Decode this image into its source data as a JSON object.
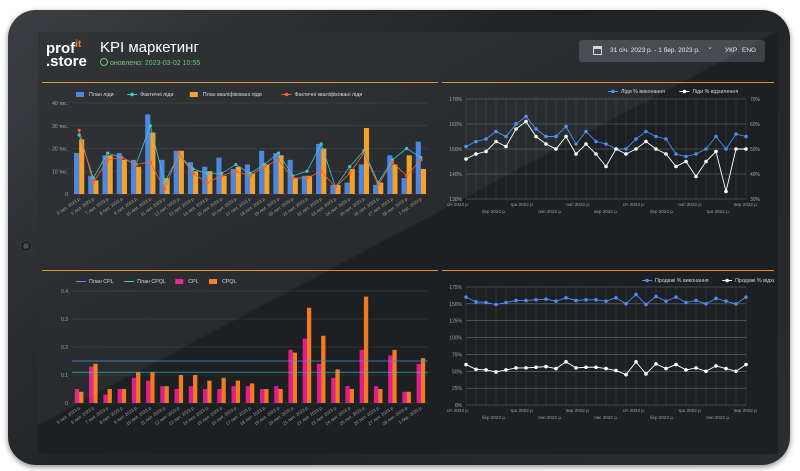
{
  "header": {
    "logo_top": "prof",
    "logo_accent": "it",
    "logo_bottom": ".store",
    "title": "KPI маркетинг",
    "updated": "оновлено: 2023-03-02 10:55",
    "date_range": "31 січ. 2023 р. - 1 бер. 2023 р.",
    "lang_ukr": "УКР",
    "lang_eng": "ENG",
    "dropdown_icon": "chevron-down"
  },
  "colors": {
    "blue": "#3f7fe0",
    "cyan": "#2ec4cc",
    "orange": "#f39b1e",
    "red_orange": "#ee5a2a",
    "magenta": "#e21d8e",
    "cpql_orange": "#f47a1f",
    "white": "#ffffff",
    "accent_line": "#e0892d"
  },
  "chart_data": [
    {
      "type": "bar",
      "legend": [
        "План ліди",
        "Фактичні ліди",
        "План кваліфіковані ліди",
        "Фактичні кваліфіковані ліди"
      ],
      "y_ticks": [
        "0",
        "10 тис.",
        "20 тис.",
        "30 тис.",
        "40 тис."
      ],
      "ylim": [
        0,
        40000
      ],
      "categories": [
        "5 лют. 2023 р.",
        "6 лют. 2023 р.",
        "7 лют. 2023 р.",
        "8 лют. 2023 р.",
        "9 лют. 2023 р.",
        "10 лют. 2023 р.",
        "11 лют. 2023 р.",
        "12 лют. 2023 р.",
        "13 лют. 2023 р.",
        "14 лют. 2023 р.",
        "15 лют. 2023 р.",
        "16 лют. 2023 р.",
        "17 лют. 2023 р.",
        "18 лют. 2023 р.",
        "19 лют. 2023 р.",
        "20 лют. 2023 р.",
        "21 лют. 2023 р.",
        "22 лют. 2023 р.",
        "23 лют. 2023 р.",
        "24 лют. 2023 р.",
        "25 лют. 2023 р.",
        "26 лют. 2023 р.",
        "27 лют. 2023 р.",
        "28 лют. 2023 р.",
        "1 бер. 2023 р."
      ],
      "series": [
        {
          "name": "План ліди",
          "values": [
            18000,
            8000,
            17000,
            18000,
            15000,
            35000,
            15000,
            19000,
            14000,
            12000,
            16000,
            11000,
            13000,
            19000,
            18000,
            15000,
            8000,
            22000,
            4000,
            5000,
            13000,
            4000,
            17000,
            7000,
            23000
          ]
        },
        {
          "name": "Фактичні ліди",
          "values": [
            26000,
            7000,
            18000,
            16000,
            13000,
            30000,
            5000,
            17000,
            11000,
            9000,
            9000,
            13000,
            9000,
            13000,
            18000,
            8000,
            10000,
            22000,
            3000,
            12000,
            19000,
            5000,
            15000,
            20000,
            16000
          ]
        },
        {
          "name": "План кваліфіковані ліди",
          "values": [
            24000,
            6000,
            17000,
            15000,
            12000,
            27000,
            7000,
            19000,
            10000,
            10000,
            8000,
            12000,
            9000,
            13000,
            17000,
            7000,
            8000,
            20000,
            4000,
            11000,
            29000,
            5000,
            13000,
            17000,
            11000
          ]
        },
        {
          "name": "Фактичні кваліфіковані ліди",
          "values": [
            28000,
            5000,
            15000,
            16000,
            13000,
            14000,
            2000,
            18000,
            9000,
            5000,
            8000,
            10000,
            8000,
            12000,
            15000,
            7000,
            7000,
            10000,
            3000,
            9000,
            18000,
            4000,
            14000,
            8000,
            15000
          ]
        }
      ]
    },
    {
      "type": "line",
      "legend": [
        "Ліди % виконання",
        "Ліди % відхилення"
      ],
      "y_left_ticks": [
        "130%",
        "140%",
        "150%",
        "160%",
        "170%"
      ],
      "y_right_ticks": [
        "30%",
        "40%",
        "50%",
        "60%",
        "70%"
      ],
      "ylim_left": [
        130,
        170
      ],
      "ylim_right": [
        30,
        70
      ],
      "x_ticks_top": [
        "січ 2022 р.",
        "тра 2022 р.",
        "лип 2022 р.",
        "січ 2022 р.",
        "лип 2022 р.",
        "вер 2022 р."
      ],
      "x_ticks_bottom": [
        "бер 2022 р.",
        "лип 2022 р.",
        "вер 2022 р.",
        "бер 2022 р.",
        "тра 2022 р.",
        "лис 2022 р."
      ],
      "series": [
        {
          "name": "Ліди % виконання",
          "values": [
            151,
            153,
            154,
            157,
            155,
            160,
            163,
            158,
            155,
            155,
            159,
            152,
            157,
            153,
            152,
            150,
            150,
            154,
            157,
            155,
            154,
            148,
            147,
            148,
            150,
            155,
            150,
            156,
            155
          ]
        },
        {
          "name": "Ліди % відхилення",
          "values": [
            146,
            148,
            149,
            153,
            151,
            158,
            161,
            155,
            152,
            150,
            155,
            148,
            152,
            148,
            143,
            150,
            148,
            150,
            153,
            150,
            148,
            143,
            145,
            139,
            145,
            149,
            133,
            150,
            150
          ]
        }
      ]
    },
    {
      "type": "bar",
      "legend": [
        "План CPL",
        "План CPQL",
        "CPL",
        "CPQL"
      ],
      "y_ticks": [
        "0",
        "0.1",
        "0.2",
        "0.3",
        "0.4"
      ],
      "ylim": [
        0,
        0.4
      ],
      "categories": [
        "5 лют. 2023 р.",
        "6 лют. 2023 р.",
        "7 лют. 2023 р.",
        "8 лют. 2023 р.",
        "9 лют. 2023 р.",
        "10 лют. 2023 р.",
        "11 лют. 2023 р.",
        "12 лют. 2023 р.",
        "13 лют. 2023 р.",
        "14 лют. 2023 р.",
        "15 лют. 2023 р.",
        "16 лют. 2023 р.",
        "17 лют. 2023 р.",
        "18 лют. 2023 р.",
        "19 лют. 2023 р.",
        "20 лют. 2023 р.",
        "21 лют. 2023 р.",
        "22 лют. 2023 р.",
        "23 лют. 2023 р.",
        "24 лют. 2023 р.",
        "25 лют. 2023 р.",
        "26 лют. 2023 р.",
        "27 лют. 2023 р.",
        "28 лют. 2023 р.",
        "1 бер. 2023 р."
      ],
      "plan_lines": [
        {
          "name": "План CPL",
          "value": 0.15
        },
        {
          "name": "План CPQL",
          "value": 0.11
        }
      ],
      "series": [
        {
          "name": "CPL",
          "values": [
            0.05,
            0.13,
            0.03,
            0.05,
            0.09,
            0.08,
            0.06,
            0.05,
            0.06,
            0.05,
            0.05,
            0.06,
            0.06,
            0.05,
            0.06,
            0.19,
            0.23,
            0.14,
            0.09,
            0.06,
            0.19,
            0.06,
            0.17,
            0.04,
            0.14
          ]
        },
        {
          "name": "CPQL",
          "values": [
            0.04,
            0.14,
            0.05,
            0.05,
            0.11,
            0.11,
            0.06,
            0.1,
            0.1,
            0.08,
            0.09,
            0.08,
            0.07,
            0.05,
            0.05,
            0.18,
            0.34,
            0.24,
            0.12,
            0.05,
            0.38,
            0.05,
            0.19,
            0.04,
            0.16
          ]
        }
      ]
    },
    {
      "type": "line",
      "legend": [
        "Продажі % виконання",
        "Продажі % відхилення"
      ],
      "y_ticks": [
        "0%",
        "25%",
        "50%",
        "75%",
        "100%",
        "125%",
        "150%",
        "175%"
      ],
      "ylim": [
        0,
        175
      ],
      "x_ticks_top": [
        "січ 2022 р.",
        "тра 2022 р.",
        "вер 2022 р.",
        "січ 2022 р.",
        "тра 2022 р.",
        "вер 2022 р."
      ],
      "x_ticks_bottom": [
        "бер 2022 р.",
        "лип 2022 р.",
        "лис 2022 р.",
        "бер 2022 р.",
        "лип 2022 р.",
        "лис 2022 р."
      ],
      "series": [
        {
          "name": "Продажі % виконання",
          "values": [
            160,
            153,
            152,
            149,
            152,
            155,
            155,
            156,
            157,
            154,
            159,
            155,
            156,
            156,
            154,
            159,
            150,
            164,
            149,
            161,
            154,
            160,
            152,
            155,
            150,
            158,
            154,
            150,
            160
          ]
        },
        {
          "name": "Продажі % відхилення",
          "values": [
            60,
            53,
            52,
            49,
            52,
            55,
            55,
            56,
            57,
            54,
            64,
            55,
            56,
            56,
            54,
            51,
            45,
            64,
            46,
            61,
            54,
            60,
            52,
            55,
            50,
            58,
            54,
            50,
            60
          ]
        }
      ]
    }
  ]
}
